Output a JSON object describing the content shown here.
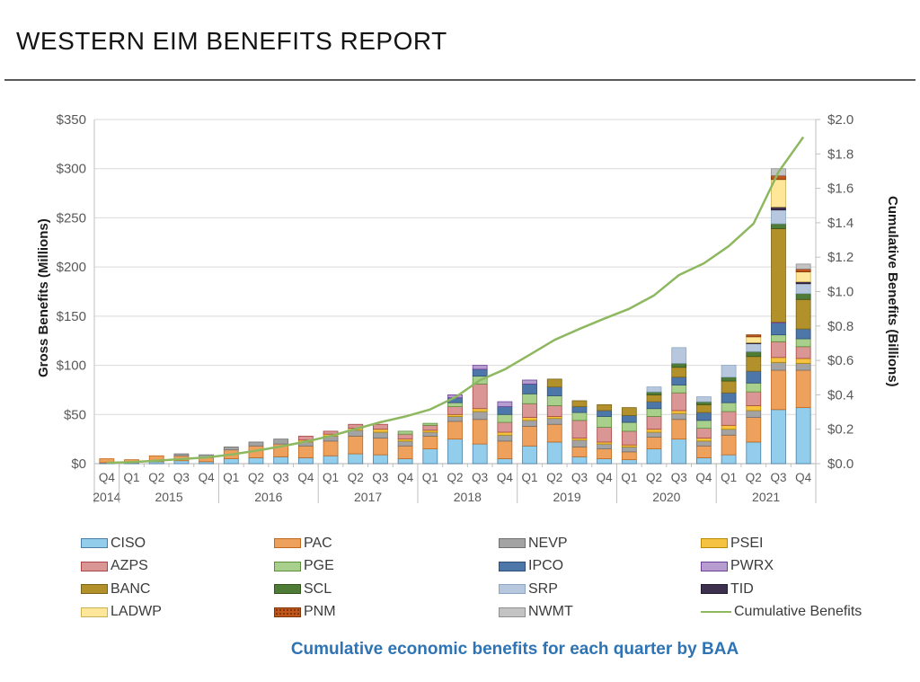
{
  "page": {
    "title": "WESTERN EIM BENEFITS REPORT",
    "caption": "Cumulative economic benefits for each quarter by BAA"
  },
  "chart_data": {
    "type": "bar",
    "stacked": true,
    "left_axis": {
      "label": "Gross Benefits (Millions)",
      "min": 0,
      "max": 350,
      "step": 50,
      "ticks": [
        "$0",
        "$50",
        "$100",
        "$150",
        "$200",
        "$250",
        "$300",
        "$350"
      ]
    },
    "right_axis": {
      "label": "Cumulative Benefits (Billions)",
      "min": 0,
      "max": 2.0,
      "step": 0.2,
      "ticks": [
        "$0.0",
        "$0.2",
        "$0.4",
        "$0.6",
        "$0.8",
        "$1.0",
        "$1.2",
        "$1.4",
        "$1.6",
        "$1.8",
        "$2.0"
      ]
    },
    "x_axis": {
      "quarters": [
        "Q4",
        "Q1",
        "Q2",
        "Q3",
        "Q4",
        "Q1",
        "Q2",
        "Q3",
        "Q4",
        "Q1",
        "Q2",
        "Q3",
        "Q4",
        "Q1",
        "Q2",
        "Q3",
        "Q4",
        "Q1",
        "Q2",
        "Q3",
        "Q4",
        "Q1",
        "Q2",
        "Q3",
        "Q4",
        "Q1",
        "Q2",
        "Q3",
        "Q4"
      ],
      "year_groups": [
        {
          "label": "2014",
          "count": 1
        },
        {
          "label": "2015",
          "count": 4
        },
        {
          "label": "2016",
          "count": 4
        },
        {
          "label": "2017",
          "count": 4
        },
        {
          "label": "2018",
          "count": 4
        },
        {
          "label": "2019",
          "count": 4
        },
        {
          "label": "2020",
          "count": 4
        },
        {
          "label": "2021",
          "count": 4
        }
      ]
    },
    "series": [
      {
        "name": "CISO",
        "fill": "#92CDEC",
        "stroke": "#4A7EA5",
        "values": [
          1,
          1,
          2,
          3,
          2,
          5,
          6,
          7,
          6,
          8,
          10,
          9,
          5,
          15,
          25,
          20,
          5,
          18,
          22,
          7,
          5,
          4,
          15,
          25,
          6,
          9,
          22,
          55,
          57
        ]
      },
      {
        "name": "PAC",
        "fill": "#EDA15C",
        "stroke": "#C0681E",
        "values": [
          4,
          3,
          6,
          5,
          4,
          9,
          12,
          13,
          12,
          15,
          18,
          17,
          13,
          13,
          18,
          25,
          18,
          20,
          18,
          10,
          10,
          8,
          12,
          20,
          12,
          20,
          25,
          40,
          38
        ]
      },
      {
        "name": "NEVP",
        "fill": "#A3A3A3",
        "stroke": "#707070",
        "values": [
          0,
          0,
          0,
          2,
          3,
          3,
          4,
          5,
          4,
          5,
          6,
          6,
          5,
          4,
          5,
          8,
          6,
          6,
          6,
          7,
          5,
          5,
          5,
          6,
          5,
          6,
          7,
          8,
          7
        ]
      },
      {
        "name": "PSEI",
        "fill": "#F6C242",
        "stroke": "#B78A00",
        "values": [
          0,
          0,
          0,
          0,
          0,
          0,
          0,
          0,
          2,
          2,
          2,
          3,
          2,
          2,
          2,
          3,
          3,
          3,
          2,
          2,
          2,
          2,
          3,
          3,
          3,
          4,
          5,
          5,
          5
        ]
      },
      {
        "name": "AZPS",
        "fill": "#D99694",
        "stroke": "#A84745",
        "values": [
          0,
          0,
          0,
          0,
          0,
          0,
          0,
          0,
          4,
          3,
          4,
          5,
          5,
          5,
          8,
          25,
          10,
          14,
          11,
          18,
          15,
          14,
          13,
          18,
          10,
          14,
          14,
          16,
          12
        ]
      },
      {
        "name": "PGE",
        "fill": "#A9CF8C",
        "stroke": "#5E8F3C",
        "values": [
          0,
          0,
          0,
          0,
          0,
          0,
          0,
          0,
          0,
          0,
          0,
          0,
          3,
          2,
          4,
          8,
          8,
          10,
          10,
          8,
          11,
          9,
          8,
          8,
          8,
          9,
          9,
          7,
          8
        ]
      },
      {
        "name": "IPCO",
        "fill": "#4D77A8",
        "stroke": "#2E4F78",
        "values": [
          0,
          0,
          0,
          0,
          0,
          0,
          0,
          0,
          0,
          0,
          0,
          0,
          0,
          0,
          5,
          7,
          8,
          10,
          9,
          6,
          6,
          7,
          7,
          8,
          8,
          10,
          12,
          12,
          10
        ]
      },
      {
        "name": "PWRX",
        "fill": "#B79CCF",
        "stroke": "#6E4097",
        "values": [
          0,
          0,
          0,
          0,
          0,
          0,
          0,
          0,
          0,
          0,
          0,
          0,
          0,
          0,
          3,
          4,
          5,
          4,
          0,
          0,
          0,
          0,
          0,
          0,
          0,
          0,
          0,
          1,
          0
        ]
      },
      {
        "name": "BANC",
        "fill": "#B2912B",
        "stroke": "#7A621A",
        "values": [
          0,
          0,
          0,
          0,
          0,
          0,
          0,
          0,
          0,
          0,
          0,
          0,
          0,
          0,
          0,
          0,
          0,
          0,
          8,
          6,
          6,
          8,
          7,
          10,
          8,
          12,
          15,
          95,
          30
        ]
      },
      {
        "name": "SCL",
        "fill": "#4E7B35",
        "stroke": "#34531F",
        "values": [
          0,
          0,
          0,
          0,
          0,
          0,
          0,
          0,
          0,
          0,
          0,
          0,
          0,
          0,
          0,
          0,
          0,
          0,
          0,
          0,
          0,
          0,
          3,
          4,
          3,
          4,
          5,
          5,
          6
        ]
      },
      {
        "name": "SRP",
        "fill": "#B7C8DE",
        "stroke": "#8CA5C4",
        "values": [
          0,
          0,
          0,
          0,
          0,
          0,
          0,
          0,
          0,
          0,
          0,
          0,
          0,
          0,
          0,
          0,
          0,
          0,
          0,
          0,
          0,
          0,
          5,
          16,
          5,
          12,
          8,
          14,
          10
        ]
      },
      {
        "name": "TID",
        "fill": "#3E3150",
        "stroke": "#241B30",
        "values": [
          0,
          0,
          0,
          0,
          0,
          0,
          0,
          0,
          0,
          0,
          0,
          0,
          0,
          0,
          0,
          0,
          0,
          0,
          0,
          0,
          0,
          0,
          0,
          0,
          0,
          0,
          1,
          3,
          2
        ]
      },
      {
        "name": "LADWP",
        "fill": "#FFE699",
        "stroke": "#CBB156",
        "values": [
          0,
          0,
          0,
          0,
          0,
          0,
          0,
          0,
          0,
          0,
          0,
          0,
          0,
          0,
          0,
          0,
          0,
          0,
          0,
          0,
          0,
          0,
          0,
          0,
          0,
          0,
          6,
          28,
          10
        ]
      },
      {
        "name": "PNM",
        "fill": "#C0561C",
        "stroke": "#7E3508",
        "values": [
          0,
          0,
          0,
          0,
          0,
          0,
          0,
          0,
          0,
          0,
          0,
          0,
          0,
          0,
          0,
          0,
          0,
          0,
          0,
          0,
          0,
          0,
          0,
          0,
          0,
          0,
          2,
          4,
          3
        ]
      },
      {
        "name": "NWMT",
        "fill": "#C3C3C3",
        "stroke": "#8F8F8F",
        "values": [
          0,
          0,
          0,
          0,
          0,
          0,
          0,
          0,
          0,
          0,
          0,
          0,
          0,
          0,
          0,
          0,
          0,
          0,
          0,
          0,
          0,
          0,
          0,
          0,
          0,
          0,
          0,
          7,
          5
        ]
      }
    ],
    "line_series": {
      "name": "Cumulative Benefits",
      "color": "#8EB860",
      "values_billions": [
        0.005,
        0.009,
        0.017,
        0.027,
        0.036,
        0.053,
        0.075,
        0.1,
        0.128,
        0.161,
        0.201,
        0.241,
        0.274,
        0.315,
        0.385,
        0.485,
        0.548,
        0.633,
        0.719,
        0.783,
        0.843,
        0.9,
        0.978,
        1.096,
        1.164,
        1.264,
        1.395,
        1.695,
        1.898
      ]
    },
    "legend": {
      "rows": [
        [
          "CISO",
          "PAC",
          "NEVP",
          "PSEI"
        ],
        [
          "AZPS",
          "PGE",
          "IPCO",
          "PWRX"
        ],
        [
          "BANC",
          "SCL",
          "SRP",
          "TID"
        ],
        [
          "LADWP",
          "PNM",
          "NWMT",
          "Cumulative Benefits"
        ]
      ]
    },
    "grid_color": "#D9D9D9",
    "axis_color": "#BFBFBF",
    "tick_text_color": "#595959"
  }
}
